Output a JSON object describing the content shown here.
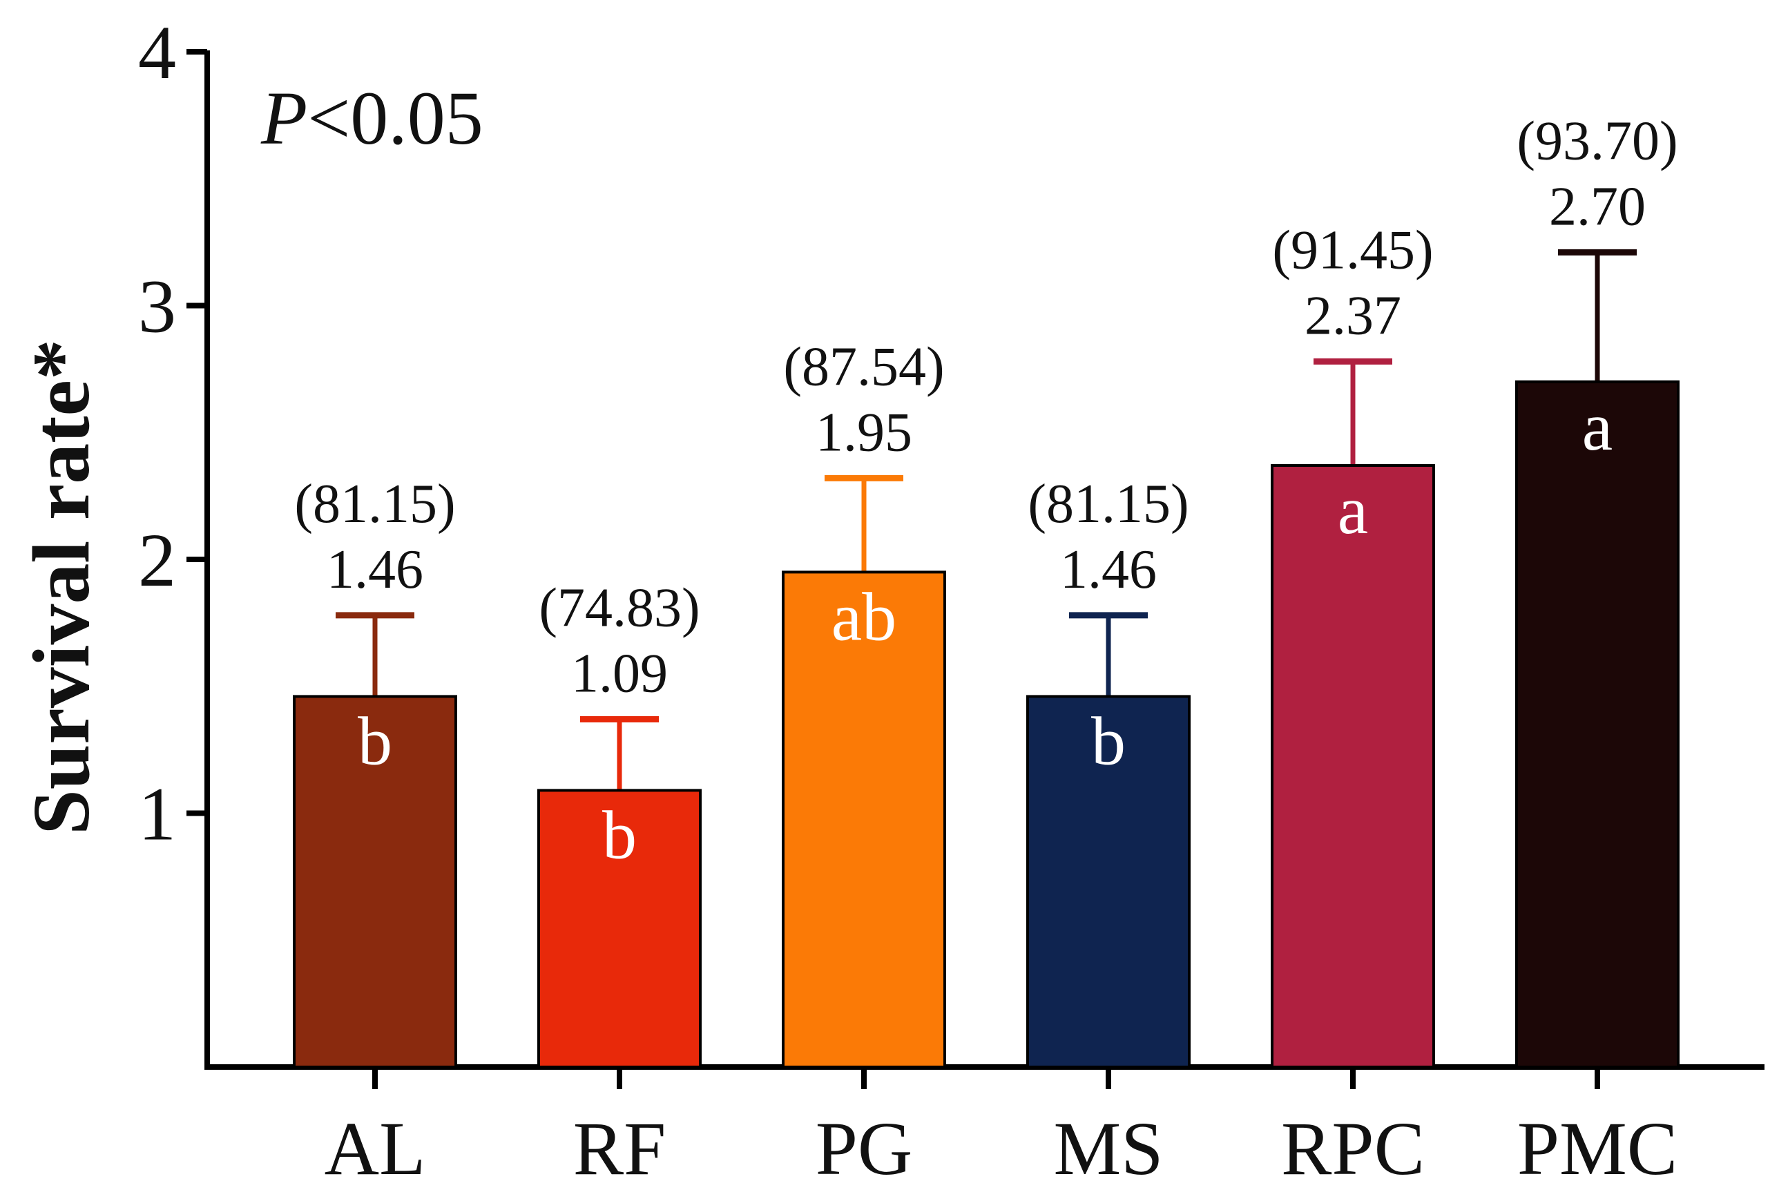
{
  "chart_data": {
    "type": "bar",
    "title": "",
    "xlabel": "",
    "ylabel": "Survival rate*",
    "ylim": [
      0,
      4
    ],
    "yticks": [
      1,
      2,
      3,
      4
    ],
    "annotation": {
      "italic": "P",
      "rest": "<0.05"
    },
    "categories": [
      "AL",
      "RF",
      "PG",
      "MS",
      "RPC",
      "PMC"
    ],
    "values": [
      1.46,
      1.09,
      1.95,
      1.46,
      2.37,
      2.7
    ],
    "errors": [
      0.32,
      0.28,
      0.37,
      0.32,
      0.41,
      0.51
    ],
    "value_labels": [
      "1.46",
      "1.09",
      "1.95",
      "1.46",
      "2.37",
      "2.70"
    ],
    "percent_labels": [
      "(81.15)",
      "(74.83)",
      "(87.54)",
      "(81.15)",
      "(91.45)",
      "(93.70)"
    ],
    "significance": [
      "b",
      "b",
      "ab",
      "b",
      "a",
      "a"
    ],
    "colors": [
      "#8a2a0e",
      "#e8290a",
      "#fb7a06",
      "#0f2450",
      "#b02040",
      "#1c0707"
    ]
  }
}
